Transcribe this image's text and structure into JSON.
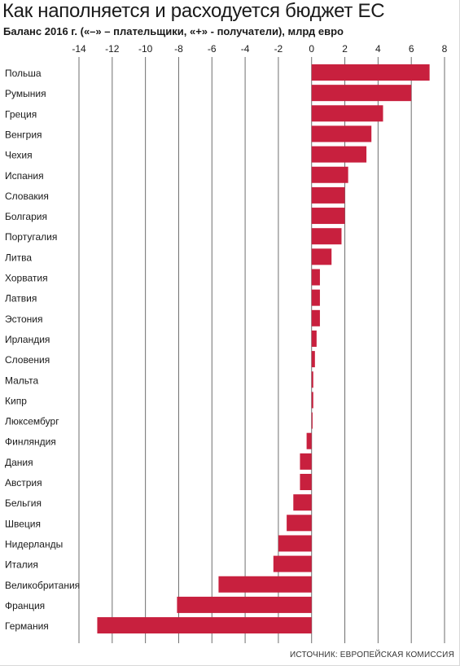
{
  "chart_data": {
    "type": "bar",
    "orientation": "horizontal",
    "title": "Как наполняется и расходуется бюджет ЕС",
    "subtitle": "Баланс 2016 г. («–» – плательщики, «+» - получатели), млрд евро",
    "xlim": [
      -14,
      8
    ],
    "x_ticks": [
      "-14",
      "-12",
      "-10",
      "-8",
      "-6",
      "-4",
      "-2",
      "0",
      "2",
      "4",
      "6",
      "8"
    ],
    "x_tick_values": [
      -14,
      -12,
      -10,
      -8,
      -6,
      -4,
      -2,
      0,
      2,
      4,
      6,
      8
    ],
    "grid": true,
    "bar_color": "#c8203e",
    "categories": [
      "Польша",
      "Румыния",
      "Греция",
      "Венгрия",
      "Чехия",
      "Испания",
      "Словакия",
      "Болгария",
      "Португалия",
      "Литва",
      "Хорватия",
      "Латвия",
      "Эстония",
      "Ирландия",
      "Словения",
      "Мальта",
      "Кипр",
      "Люксембург",
      "Финляндия",
      "Дания",
      "Австрия",
      "Бельгия",
      "Швеция",
      "Нидерланды",
      "Италия",
      "Великобритания",
      "Франция",
      "Германия"
    ],
    "values": [
      7.1,
      6.0,
      4.3,
      3.6,
      3.3,
      2.2,
      2.0,
      2.0,
      1.8,
      1.2,
      0.5,
      0.5,
      0.5,
      0.3,
      0.2,
      0.1,
      0.1,
      0.05,
      -0.3,
      -0.7,
      -0.7,
      -1.1,
      -1.5,
      -2.0,
      -2.3,
      -5.6,
      -8.1,
      -12.9
    ]
  },
  "source": "ИСТОЧНИК: ЕВРОПЕЙСКАЯ КОМИССИЯ"
}
